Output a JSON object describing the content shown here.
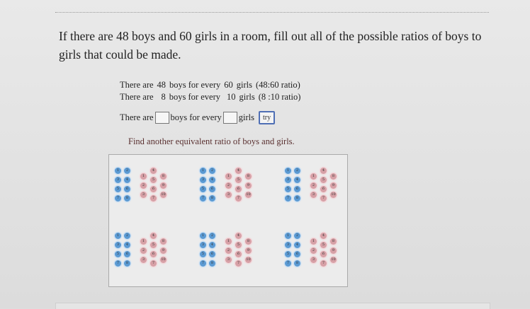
{
  "question": "If there are 48 boys and 60 girls in a room, fill out all of the possible ratios of boys to girls that could be made.",
  "ratios": [
    {
      "prefix": "There are",
      "boys": "48",
      "mid": "boys for every",
      "girls": "60",
      "suffix": "girls",
      "ratio": "(48:60 ratio)"
    },
    {
      "prefix": "There are",
      "boys": "8",
      "mid": "boys for every",
      "girls": "10",
      "suffix": "girls",
      "ratio": "(8 :10 ratio)"
    }
  ],
  "entry": {
    "prefix": "There are",
    "mid": "boys for every",
    "suffix": "girls",
    "boys_value": "",
    "girls_value": "",
    "try_label": "try"
  },
  "prompt": "Find another equivalent ratio of boys and girls.",
  "groups": {
    "count": 6,
    "boys_per_group": 8,
    "girls_per_group": 10
  },
  "colors": {
    "boy": "#5b9ad3",
    "girl": "#d7a0a6",
    "try_border": "#4f6fb5"
  }
}
